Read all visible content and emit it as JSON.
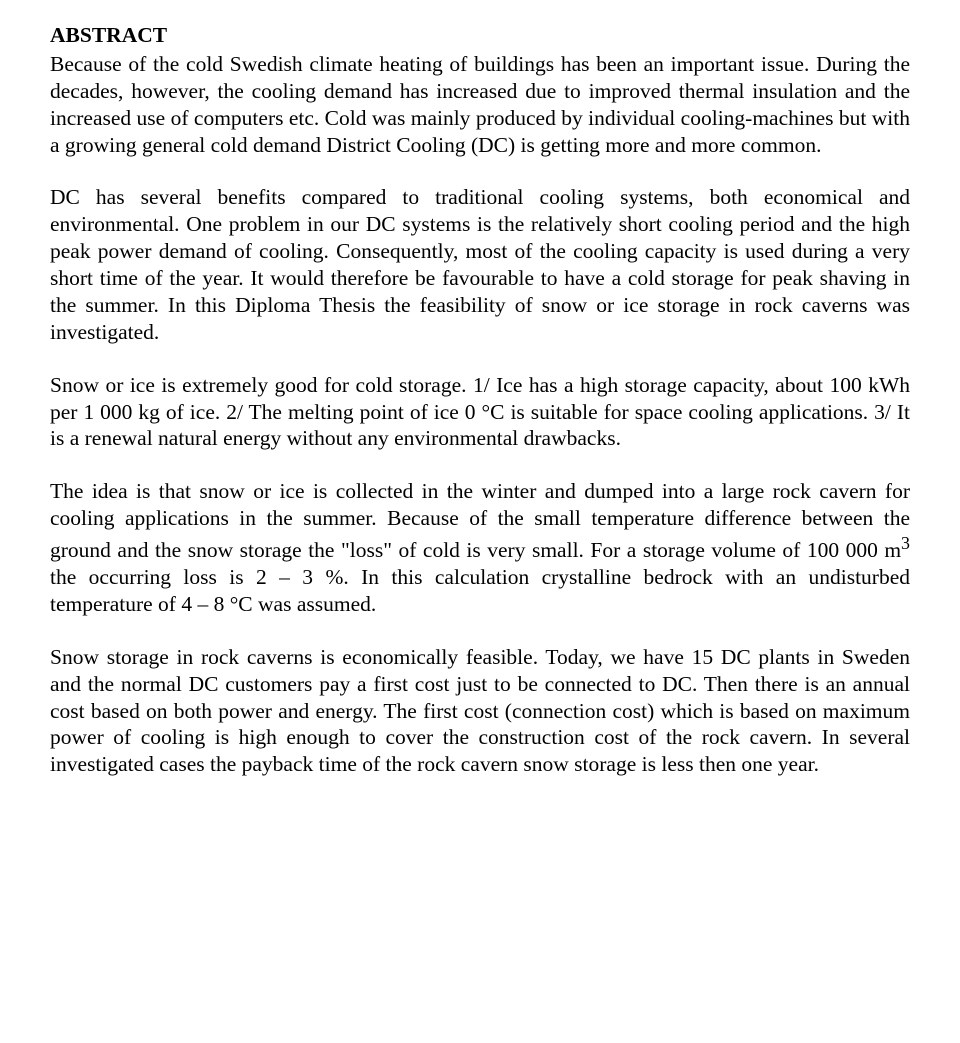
{
  "heading": "ABSTRACT",
  "paragraphs": {
    "p1": "Because of the cold Swedish climate heating of buildings has been an important issue. During the decades, however, the cooling demand has increased due to improved thermal insulation and the increased use of computers etc. Cold was mainly produced by individual cooling-machines but with a growing general cold demand District Cooling (DC) is getting more and more common.",
    "p2": "DC has several benefits compared to traditional cooling systems, both economical and environmental. One problem in our DC systems is the relatively short cooling period and the high peak power demand of cooling. Consequently, most of the cooling capacity is used during a very short time of the year. It would therefore be favourable to have a cold storage for peak shaving in the summer. In this Diploma Thesis the feasibility of snow or ice storage in rock caverns was investigated.",
    "p3": "Snow or ice is extremely good for cold storage. 1/ Ice has a high storage capacity, about 100 kWh per 1 000 kg of ice. 2/ The melting point of ice 0 °C is suitable for space cooling applications. 3/ It is a renewal natural energy without any environmental drawbacks.",
    "p4_a": "The idea is that snow or ice is collected in the winter and dumped into a large rock cavern for cooling applications in the summer. Because of the small temperature difference between the ground and the snow storage the \"loss\" of cold is very small.  For a storage volume of 100 000 m",
    "p4_sup": "3",
    "p4_b": " the occurring loss is 2 – 3 %. In this calculation crystalline bedrock with an undisturbed temperature of 4 – 8 °C was assumed.",
    "p5": "Snow storage in rock caverns is economically feasible. Today, we have 15 DC plants in Sweden and the normal DC customers pay a first cost just to be connected to DC. Then there is an annual cost based on both power and energy. The first cost (connection cost) which is based on maximum power of cooling is high enough to cover the construction cost of the rock cavern. In several investigated cases the payback time of the rock cavern snow storage is less then one year."
  }
}
